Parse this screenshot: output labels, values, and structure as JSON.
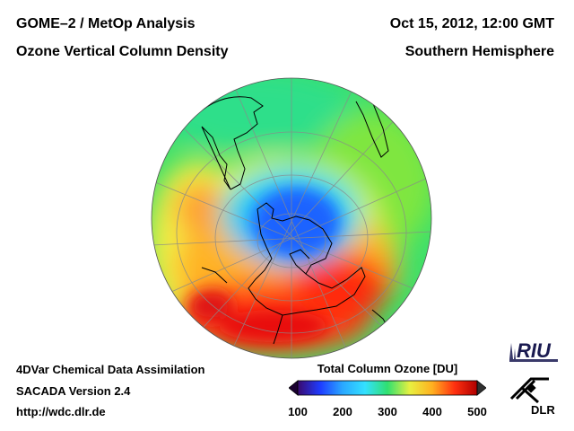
{
  "header": {
    "title_line1": "GOME–2 / MetOp Analysis",
    "title_line2": "Ozone Vertical Column Density",
    "date": "Oct 15, 2012, 12:00 GMT",
    "region": "Southern Hemisphere"
  },
  "footer": {
    "line1": "4DVar Chemical Data Assimilation",
    "line2": "SACADA Version 2.4",
    "line3": "http://wdc.dlr.de"
  },
  "legend": {
    "title": "Total Column Ozone [DU]",
    "ticks": [
      "100",
      "200",
      "300",
      "400",
      "500"
    ],
    "colors": [
      "#3a0a6e",
      "#1e3cff",
      "#2aa8ff",
      "#33e0ff",
      "#30e070",
      "#e8f040",
      "#ffb020",
      "#ff3010",
      "#b00000"
    ]
  },
  "logos": {
    "riu_text": "RIU",
    "dlr_text": "DLR"
  },
  "map": {
    "projection": "orthographic south polar",
    "ozone_hole_color": "#1e64ff"
  }
}
